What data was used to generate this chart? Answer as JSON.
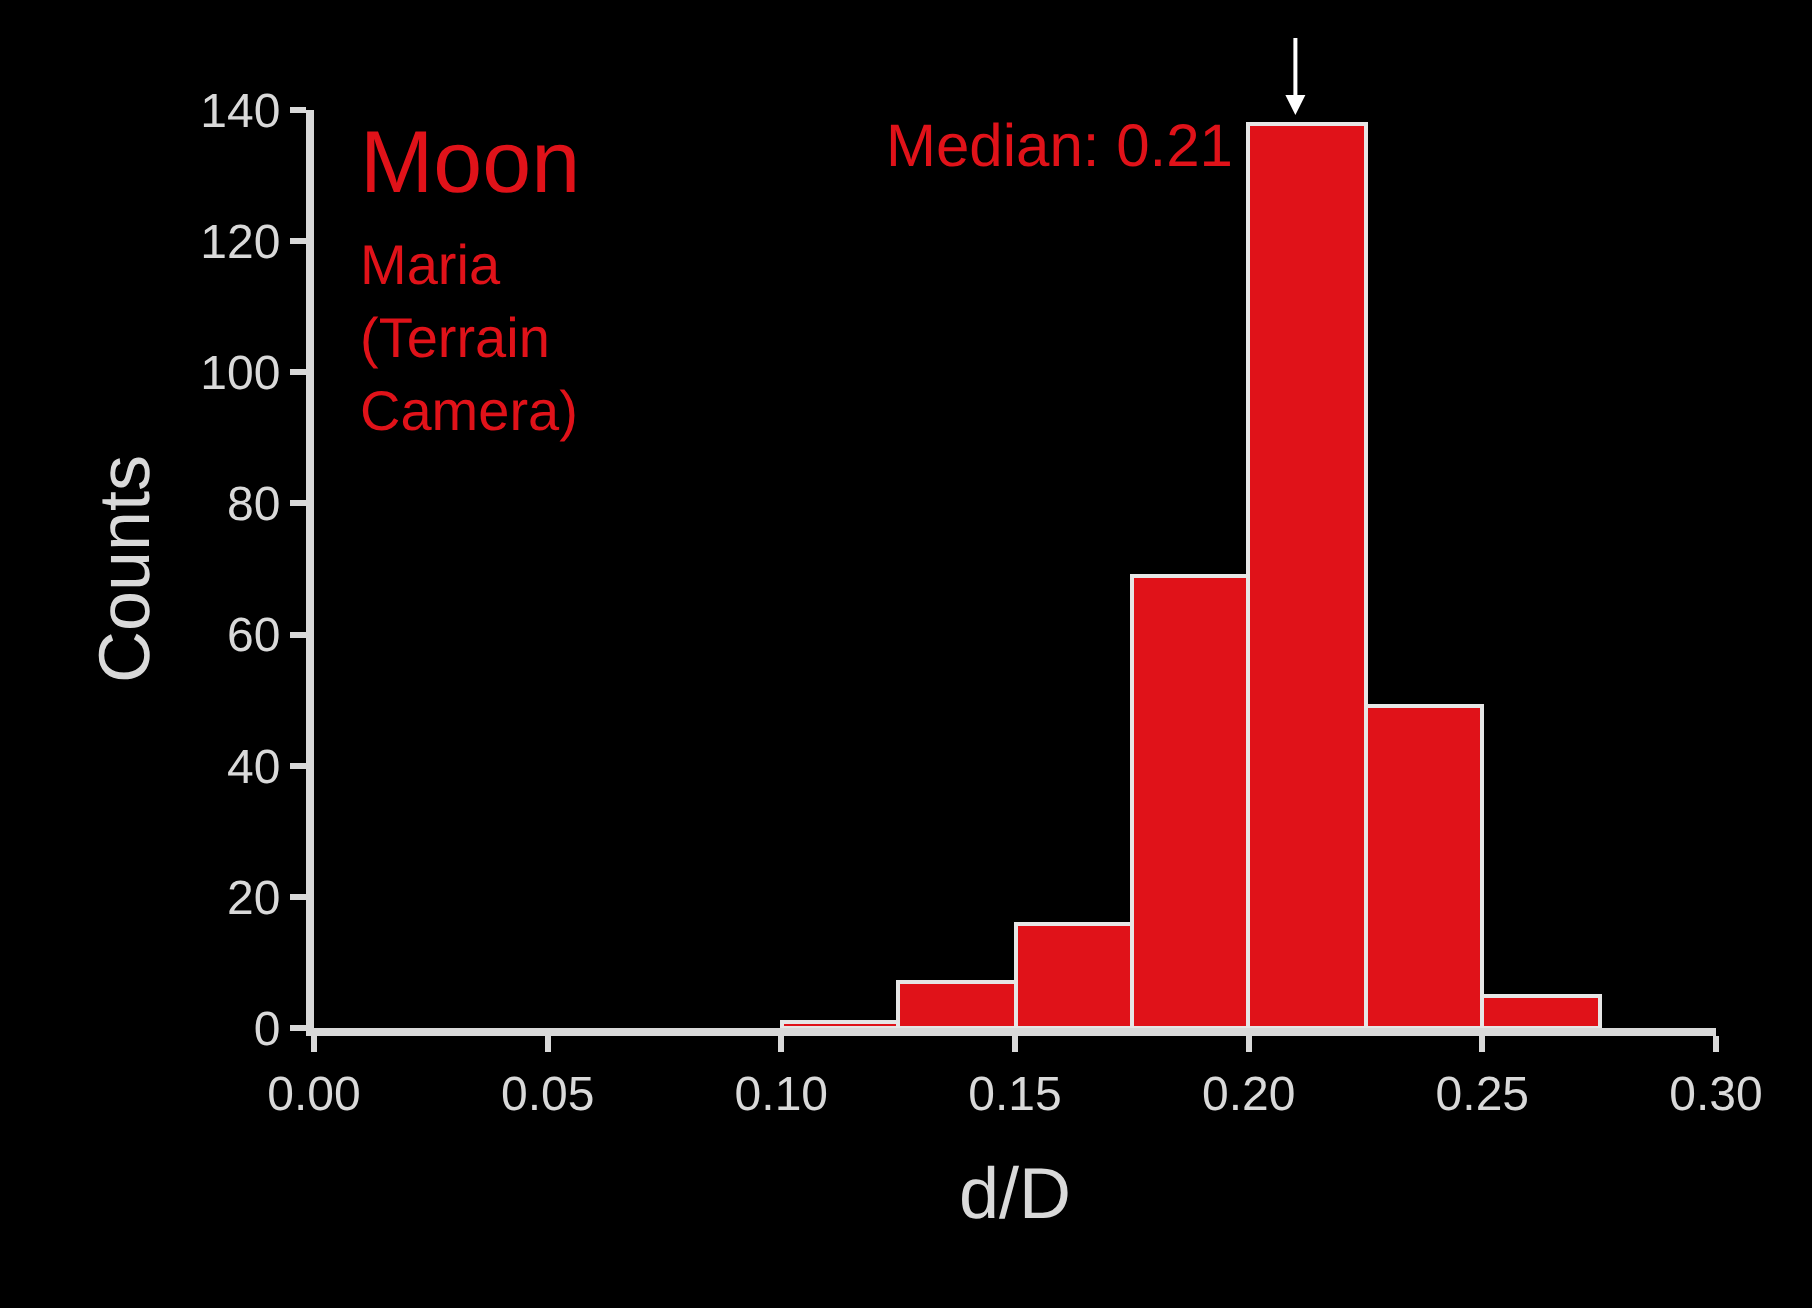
{
  "chart_data": {
    "type": "histogram",
    "title": "Moon",
    "subtitle": "Maria\n(Terrain\nCamera)",
    "xlabel": "d/D",
    "ylabel": "Counts",
    "bins": [
      0.1,
      0.125,
      0.15,
      0.175,
      0.2,
      0.225,
      0.25,
      0.275
    ],
    "values": [
      1,
      7,
      16,
      69,
      138,
      49,
      5
    ],
    "color": "#e01219",
    "annotations": [
      {
        "text": "Median: 0.21",
        "x": 0.21,
        "y": 138
      }
    ],
    "xlim": [
      0,
      0.3
    ],
    "xticks": [
      {
        "value": 0,
        "label": "0.00"
      },
      0.05,
      {
        "value": 0.1,
        "label": "0.10"
      },
      0.15,
      {
        "value": 0.2,
        "label": "0.20"
      },
      0.25,
      {
        "value": 0.3,
        "label": "0.30"
      }
    ],
    "ylim": [
      0,
      140
    ],
    "yticks": [
      0,
      20,
      40,
      60,
      80,
      100,
      120,
      140
    ],
    "grid": false
  }
}
